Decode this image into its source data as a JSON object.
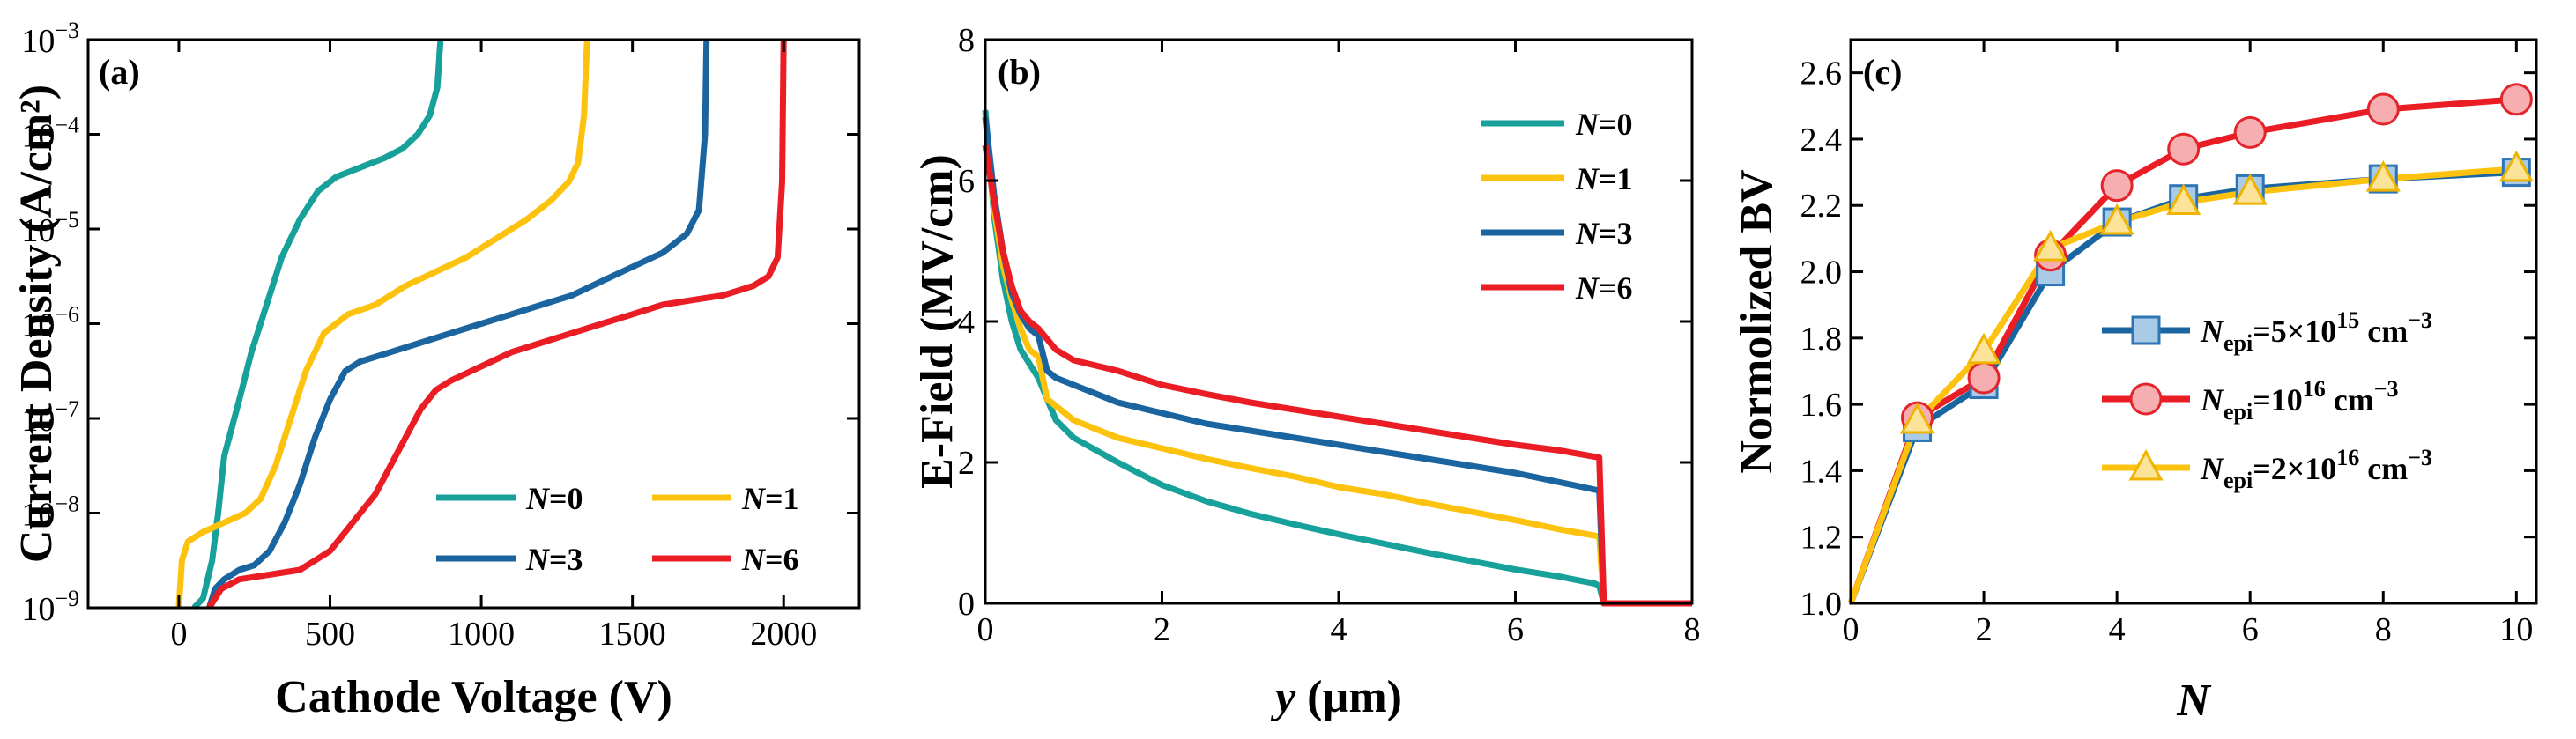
{
  "chart_data": [
    {
      "id": "a",
      "type": "line",
      "panel_label": "(a)",
      "xlabel": "Cathode Voltage (V)",
      "ylabel": "Current Density (A/cm²)",
      "yscale": "log",
      "xlim": [
        -300,
        2250
      ],
      "ylim_exp": [
        -9,
        -3
      ],
      "xticks": [
        {
          "v": 0,
          "t": "0"
        },
        {
          "v": 500,
          "t": "500"
        },
        {
          "v": 1000,
          "t": "1000"
        },
        {
          "v": 1500,
          "t": "1500"
        },
        {
          "v": 2000,
          "t": "2000"
        }
      ],
      "yticks": [
        {
          "e": -9,
          "b": "10",
          "s": "−9"
        },
        {
          "e": -8,
          "b": "10",
          "s": "−8"
        },
        {
          "e": -7,
          "b": "10",
          "s": "−7"
        },
        {
          "e": -6,
          "b": "10",
          "s": "−6"
        },
        {
          "e": -5,
          "b": "10",
          "s": "−5"
        },
        {
          "e": -4,
          "b": "10",
          "s": "−4"
        },
        {
          "e": -3,
          "b": "10",
          "s": "−3"
        }
      ],
      "legend_position": "bottom-right",
      "series": [
        {
          "name": "N=0",
          "n": "N",
          "eq": "=0",
          "color": "#17a19a",
          "points": [
            [
              50,
              -9
            ],
            [
              80,
              -8.9
            ],
            [
              110,
              -8.5
            ],
            [
              130,
              -8
            ],
            [
              150,
              -7.4
            ],
            [
              175,
              -7.1
            ],
            [
              200,
              -6.8
            ],
            [
              240,
              -6.3
            ],
            [
              290,
              -5.8
            ],
            [
              340,
              -5.3
            ],
            [
              400,
              -4.9
            ],
            [
              460,
              -4.6
            ],
            [
              520,
              -4.45
            ],
            [
              600,
              -4.35
            ],
            [
              680,
              -4.25
            ],
            [
              740,
              -4.15
            ],
            [
              790,
              -4.0
            ],
            [
              830,
              -3.8
            ],
            [
              855,
              -3.5
            ],
            [
              865,
              -3.0
            ]
          ]
        },
        {
          "name": "N=1",
          "n": "N",
          "eq": "=1",
          "color": "#fdc20e",
          "points": [
            [
              0,
              -9
            ],
            [
              10,
              -8.5
            ],
            [
              30,
              -8.3
            ],
            [
              80,
              -8.2
            ],
            [
              150,
              -8.1
            ],
            [
              220,
              -8.0
            ],
            [
              270,
              -7.85
            ],
            [
              320,
              -7.5
            ],
            [
              370,
              -7.0
            ],
            [
              420,
              -6.5
            ],
            [
              480,
              -6.1
            ],
            [
              560,
              -5.9
            ],
            [
              650,
              -5.8
            ],
            [
              750,
              -5.6
            ],
            [
              850,
              -5.45
            ],
            [
              950,
              -5.3
            ],
            [
              1050,
              -5.1
            ],
            [
              1150,
              -4.9
            ],
            [
              1230,
              -4.7
            ],
            [
              1290,
              -4.5
            ],
            [
              1320,
              -4.3
            ],
            [
              1340,
              -3.8
            ],
            [
              1350,
              -3.0
            ]
          ]
        },
        {
          "name": "N=3",
          "n": "N",
          "eq": "=3",
          "color": "#1a64a0",
          "points": [
            [
              100,
              -9
            ],
            [
              120,
              -8.8
            ],
            [
              150,
              -8.7
            ],
            [
              200,
              -8.6
            ],
            [
              250,
              -8.55
            ],
            [
              300,
              -8.4
            ],
            [
              350,
              -8.1
            ],
            [
              400,
              -7.7
            ],
            [
              450,
              -7.2
            ],
            [
              500,
              -6.8
            ],
            [
              550,
              -6.5
            ],
            [
              600,
              -6.4
            ],
            [
              700,
              -6.3
            ],
            [
              800,
              -6.2
            ],
            [
              900,
              -6.1
            ],
            [
              1000,
              -6.0
            ],
            [
              1100,
              -5.9
            ],
            [
              1200,
              -5.8
            ],
            [
              1300,
              -5.7
            ],
            [
              1400,
              -5.55
            ],
            [
              1500,
              -5.4
            ],
            [
              1600,
              -5.25
            ],
            [
              1680,
              -5.05
            ],
            [
              1720,
              -4.8
            ],
            [
              1740,
              -4.0
            ],
            [
              1745,
              -3.0
            ]
          ]
        },
        {
          "name": "N=6",
          "n": "N",
          "eq": "=6",
          "color": "#ea1c24",
          "points": [
            [
              100,
              -9
            ],
            [
              140,
              -8.8
            ],
            [
              200,
              -8.7
            ],
            [
              300,
              -8.65
            ],
            [
              400,
              -8.6
            ],
            [
              450,
              -8.5
            ],
            [
              500,
              -8.4
            ],
            [
              550,
              -8.2
            ],
            [
              600,
              -8.0
            ],
            [
              650,
              -7.8
            ],
            [
              700,
              -7.5
            ],
            [
              750,
              -7.2
            ],
            [
              800,
              -6.9
            ],
            [
              850,
              -6.7
            ],
            [
              900,
              -6.6
            ],
            [
              1000,
              -6.45
            ],
            [
              1100,
              -6.3
            ],
            [
              1200,
              -6.2
            ],
            [
              1300,
              -6.1
            ],
            [
              1400,
              -6.0
            ],
            [
              1500,
              -5.9
            ],
            [
              1600,
              -5.8
            ],
            [
              1700,
              -5.75
            ],
            [
              1800,
              -5.7
            ],
            [
              1900,
              -5.6
            ],
            [
              1950,
              -5.5
            ],
            [
              1980,
              -5.3
            ],
            [
              1995,
              -4.5
            ],
            [
              2000,
              -3.0
            ]
          ]
        }
      ]
    },
    {
      "id": "b",
      "type": "line",
      "panel_label": "(b)",
      "xlabel_italic": "y",
      "xlabel_rest": " (µm)",
      "ylabel": "E-Field (MV/cm)",
      "xlim": [
        0,
        8
      ],
      "ylim": [
        0,
        8
      ],
      "xticks": [
        0,
        2,
        4,
        6,
        8
      ],
      "yticks": [
        0,
        2,
        4,
        6,
        8
      ],
      "legend_position": "top-right",
      "series": [
        {
          "name": "N=0",
          "n": "N",
          "eq": "=0",
          "color": "#17a19a",
          "points": [
            [
              0,
              7.0
            ],
            [
              0.1,
              5.5
            ],
            [
              0.2,
              4.6
            ],
            [
              0.3,
              4.0
            ],
            [
              0.4,
              3.6
            ],
            [
              0.5,
              3.4
            ],
            [
              0.6,
              3.2
            ],
            [
              0.7,
              2.9
            ],
            [
              0.8,
              2.6
            ],
            [
              1.0,
              2.35
            ],
            [
              1.5,
              2.0
            ],
            [
              2.0,
              1.68
            ],
            [
              2.5,
              1.45
            ],
            [
              3.0,
              1.27
            ],
            [
              3.5,
              1.12
            ],
            [
              4.0,
              0.98
            ],
            [
              4.5,
              0.85
            ],
            [
              5.0,
              0.72
            ],
            [
              5.5,
              0.6
            ],
            [
              6.0,
              0.48
            ],
            [
              6.5,
              0.38
            ],
            [
              6.9,
              0.28
            ],
            [
              6.95,
              0.25
            ],
            [
              7.0,
              0
            ],
            [
              8.0,
              0
            ]
          ]
        },
        {
          "name": "N=1",
          "n": "N",
          "eq": "=1",
          "color": "#fdc20e",
          "points": [
            [
              0,
              6.9
            ],
            [
              0.1,
              5.6
            ],
            [
              0.2,
              4.8
            ],
            [
              0.3,
              4.3
            ],
            [
              0.4,
              3.9
            ],
            [
              0.5,
              3.6
            ],
            [
              0.6,
              3.5
            ],
            [
              0.7,
              2.9
            ],
            [
              0.8,
              2.8
            ],
            [
              1.0,
              2.6
            ],
            [
              1.5,
              2.35
            ],
            [
              2.0,
              2.2
            ],
            [
              2.5,
              2.05
            ],
            [
              3.0,
              1.92
            ],
            [
              3.5,
              1.8
            ],
            [
              4.0,
              1.65
            ],
            [
              4.5,
              1.55
            ],
            [
              5.0,
              1.42
            ],
            [
              5.5,
              1.3
            ],
            [
              6.0,
              1.18
            ],
            [
              6.5,
              1.05
            ],
            [
              6.95,
              0.95
            ],
            [
              7.0,
              0
            ],
            [
              8.0,
              0
            ]
          ]
        },
        {
          "name": "N=3",
          "n": "N",
          "eq": "=3",
          "color": "#1a64a0",
          "points": [
            [
              0,
              6.9
            ],
            [
              0.1,
              5.8
            ],
            [
              0.2,
              5.0
            ],
            [
              0.3,
              4.4
            ],
            [
              0.4,
              4.1
            ],
            [
              0.5,
              3.9
            ],
            [
              0.6,
              3.8
            ],
            [
              0.7,
              3.3
            ],
            [
              0.8,
              3.2
            ],
            [
              1.0,
              3.1
            ],
            [
              1.5,
              2.85
            ],
            [
              2.0,
              2.7
            ],
            [
              2.5,
              2.55
            ],
            [
              3.0,
              2.45
            ],
            [
              3.5,
              2.35
            ],
            [
              4.0,
              2.25
            ],
            [
              4.5,
              2.15
            ],
            [
              5.0,
              2.05
            ],
            [
              5.5,
              1.95
            ],
            [
              6.0,
              1.85
            ],
            [
              6.5,
              1.72
            ],
            [
              6.95,
              1.6
            ],
            [
              7.0,
              0
            ],
            [
              8.0,
              0
            ]
          ]
        },
        {
          "name": "N=6",
          "n": "N",
          "eq": "=6",
          "color": "#ea1c24",
          "points": [
            [
              0,
              6.5
            ],
            [
              0.1,
              5.7
            ],
            [
              0.2,
              5.0
            ],
            [
              0.3,
              4.5
            ],
            [
              0.4,
              4.15
            ],
            [
              0.5,
              4.0
            ],
            [
              0.6,
              3.9
            ],
            [
              0.7,
              3.75
            ],
            [
              0.8,
              3.6
            ],
            [
              1.0,
              3.45
            ],
            [
              1.5,
              3.3
            ],
            [
              2.0,
              3.1
            ],
            [
              2.5,
              2.97
            ],
            [
              3.0,
              2.85
            ],
            [
              3.5,
              2.75
            ],
            [
              4.0,
              2.65
            ],
            [
              4.5,
              2.55
            ],
            [
              5.0,
              2.45
            ],
            [
              5.5,
              2.35
            ],
            [
              6.0,
              2.25
            ],
            [
              6.5,
              2.17
            ],
            [
              6.95,
              2.07
            ],
            [
              7.0,
              0
            ],
            [
              8.0,
              0
            ]
          ]
        }
      ]
    },
    {
      "id": "c",
      "type": "line",
      "panel_label": "(c)",
      "xlabel": "N",
      "ylabel": "Normolized BV",
      "xlim": [
        0,
        10.3
      ],
      "ylim": [
        1.0,
        2.7
      ],
      "xticks": [
        0,
        2,
        4,
        6,
        8,
        10
      ],
      "yticks": [
        "1.0",
        "1.2",
        "1.4",
        "1.6",
        "1.8",
        "2.0",
        "2.2",
        "2.4",
        "2.6"
      ],
      "legend_position": "bottom-right",
      "series": [
        {
          "legend_main": "N",
          "legend_sub": "epi",
          "legend_pre": "=5×10",
          "legend_sup": "15",
          "legend_unit": " cm",
          "legend_unit_sup": "−3",
          "line_color": "#1a64a0",
          "marker": "square",
          "marker_fill": "#a9cbe7",
          "marker_edge": "#2e75b6",
          "x": [
            0,
            1,
            2,
            3,
            4,
            5,
            6,
            8,
            10
          ],
          "y": [
            1.0,
            1.53,
            1.66,
            2.0,
            2.15,
            2.22,
            2.25,
            2.28,
            2.3
          ]
        },
        {
          "legend_main": "N",
          "legend_sub": "epi",
          "legend_pre": "=10",
          "legend_sup": "16",
          "legend_unit": " cm",
          "legend_unit_sup": "−3",
          "line_color": "#ea1c24",
          "marker": "circle",
          "marker_fill": "#f6aeb0",
          "marker_edge": "#e3242b",
          "x": [
            0,
            1,
            2,
            3,
            4,
            5,
            6,
            8,
            10
          ],
          "y": [
            1.0,
            1.56,
            1.68,
            2.05,
            2.26,
            2.37,
            2.42,
            2.49,
            2.52
          ]
        },
        {
          "legend_main": "N",
          "legend_sub": "epi",
          "legend_pre": "=2×10",
          "legend_sup": "16",
          "legend_unit": " cm",
          "legend_unit_sup": "−3",
          "line_color": "#fdc20e",
          "marker": "triangle",
          "marker_fill": "#fbe49a",
          "marker_edge": "#f0b400",
          "x": [
            0,
            1,
            2,
            3,
            4,
            5,
            6,
            8,
            10
          ],
          "y": [
            1.0,
            1.55,
            1.76,
            2.07,
            2.15,
            2.21,
            2.24,
            2.28,
            2.31
          ]
        }
      ]
    }
  ]
}
